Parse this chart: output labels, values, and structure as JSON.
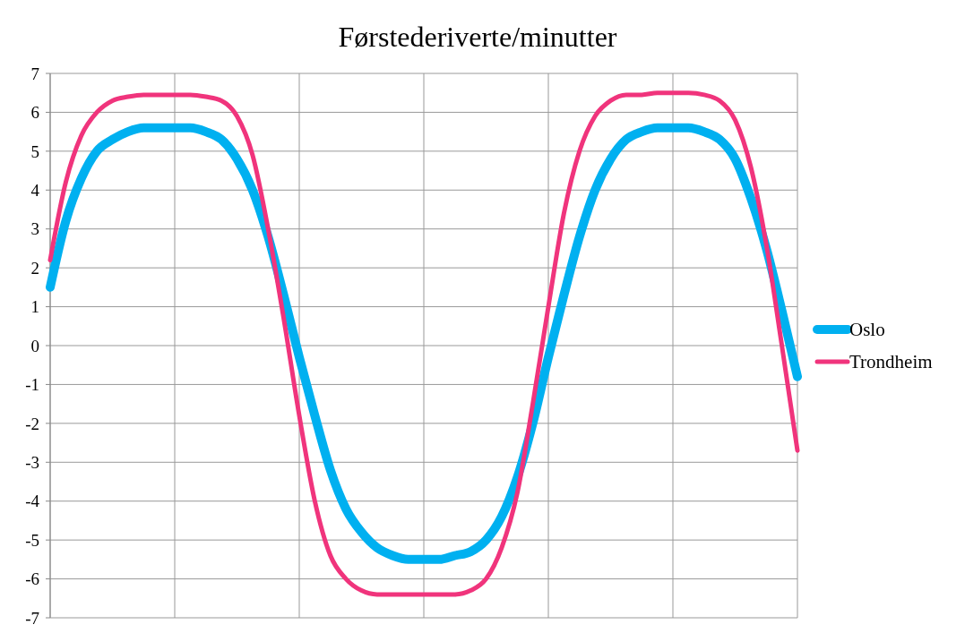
{
  "chart_data": {
    "type": "line",
    "title": "Førstederiverte/minutter",
    "categories": [
      null,
      null,
      null,
      null,
      null,
      null,
      null,
      null,
      null,
      null,
      null,
      null,
      null,
      null,
      null,
      null,
      null,
      null,
      null,
      null,
      null,
      null,
      null,
      null,
      null,
      null,
      null,
      null,
      null,
      null,
      null,
      null,
      null,
      null,
      null,
      null,
      null,
      null,
      null,
      null,
      null,
      null,
      null,
      null,
      null,
      null,
      null,
      null,
      null
    ],
    "series": [
      {
        "name": "Oslo",
        "color": "#00b0f0",
        "values": [
          1.5,
          3.2,
          4.3,
          5.0,
          5.3,
          5.5,
          5.6,
          5.6,
          5.6,
          5.6,
          5.5,
          5.3,
          4.8,
          4.0,
          2.8,
          1.3,
          -0.3,
          -1.8,
          -3.2,
          -4.2,
          -4.8,
          -5.2,
          -5.4,
          -5.5,
          -5.5,
          -5.5,
          -5.4,
          -5.3,
          -5.0,
          -4.4,
          -3.4,
          -2.0,
          -0.3,
          1.3,
          2.8,
          4.0,
          4.8,
          5.3,
          5.5,
          5.6,
          5.6,
          5.6,
          5.5,
          5.3,
          4.8,
          3.8,
          2.5,
          0.9,
          -0.8
        ]
      },
      {
        "name": "Trondheim",
        "color": "#f0347c",
        "values": [
          2.2,
          4.2,
          5.4,
          6.0,
          6.3,
          6.4,
          6.45,
          6.45,
          6.45,
          6.45,
          6.4,
          6.3,
          5.9,
          4.9,
          3.0,
          0.7,
          -1.8,
          -4.0,
          -5.4,
          -6.0,
          -6.3,
          -6.4,
          -6.4,
          -6.4,
          -6.4,
          -6.4,
          -6.4,
          -6.3,
          -6.0,
          -5.2,
          -3.8,
          -1.5,
          1.0,
          3.4,
          5.0,
          5.9,
          6.3,
          6.45,
          6.45,
          6.5,
          6.5,
          6.5,
          6.45,
          6.3,
          5.8,
          4.6,
          2.6,
          0.0,
          -2.7
        ]
      }
    ],
    "ylim": [
      -7,
      7
    ],
    "yticks": [
      -7,
      -6,
      -5,
      -4,
      -3,
      -2,
      -1,
      0,
      1,
      2,
      3,
      4,
      5,
      6,
      7
    ],
    "grid": true,
    "legend": "right"
  }
}
